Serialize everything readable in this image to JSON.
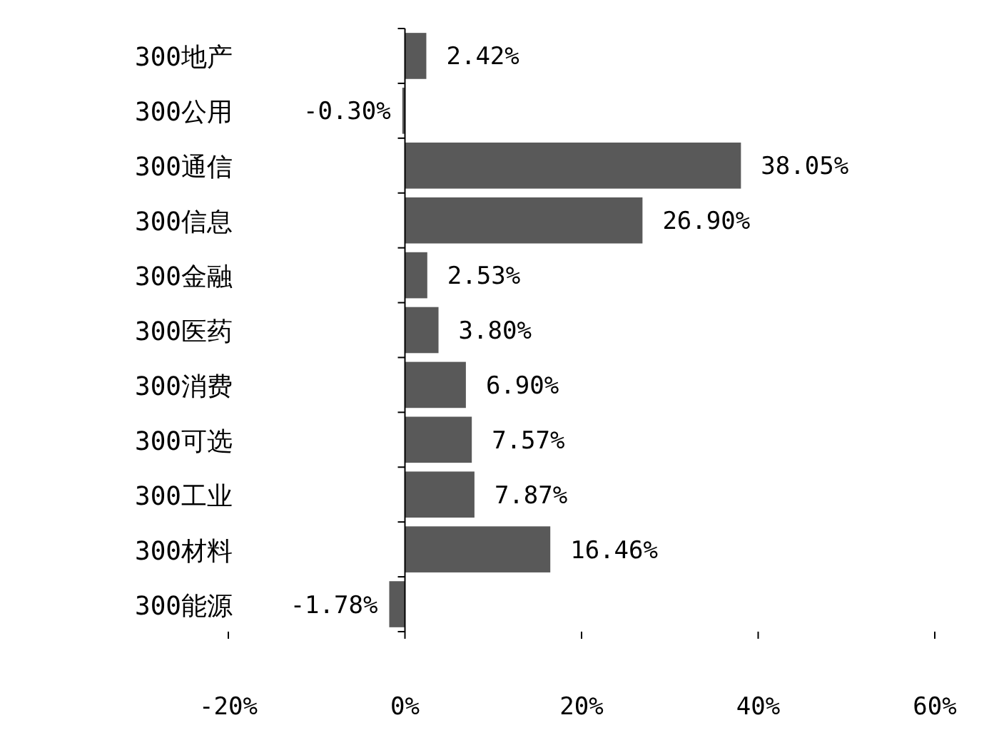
{
  "chart_data": {
    "type": "bar",
    "orientation": "horizontal",
    "categories": [
      "300地产",
      "300公用",
      "300通信",
      "300信息",
      "300金融",
      "300医药",
      "300消费",
      "300可选",
      "300工业",
      "300材料",
      "300能源"
    ],
    "values": [
      2.42,
      -0.3,
      38.05,
      26.9,
      2.53,
      3.8,
      6.9,
      7.57,
      7.87,
      16.46,
      -1.78
    ],
    "value_labels": [
      "2.42%",
      "-0.30%",
      "38.05%",
      "26.90%",
      "2.53%",
      "3.80%",
      "6.90%",
      "7.57%",
      "7.87%",
      "16.46%",
      "-1.78%"
    ],
    "color": "#595959",
    "xlim": [
      -20,
      60
    ],
    "xticks": [
      {
        "value": -20,
        "label": "-20%"
      },
      {
        "value": 0,
        "label": "0%"
      },
      {
        "value": 20,
        "label": "20%"
      },
      {
        "value": 40,
        "label": "40%"
      },
      {
        "value": 60,
        "label": "60%"
      }
    ]
  }
}
